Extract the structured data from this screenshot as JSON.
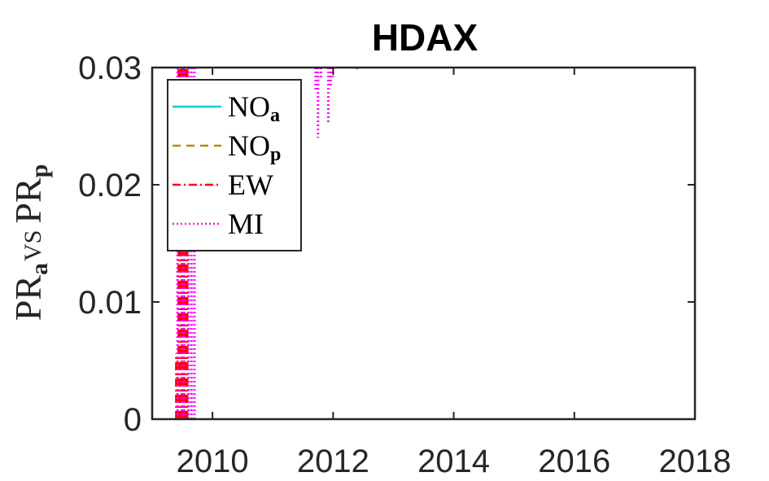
{
  "chart_data": {
    "type": "line",
    "title": "HDAX",
    "ylabel": {
      "main_a": "PR",
      "sub_a": "a",
      "middle": "VS",
      "main_b": "PR",
      "sub_b": "p"
    },
    "xlabel": "",
    "xlim": [
      2009.0,
      2018.0
    ],
    "ylim": [
      0,
      0.03
    ],
    "x_ticks": [
      "2010",
      "2012",
      "2014",
      "2016",
      "2018"
    ],
    "x_tick_values": [
      2010,
      2012,
      2014,
      2016,
      2018
    ],
    "y_ticks": [
      "0",
      "0.01",
      "0.02",
      "0.03"
    ],
    "y_tick_values": [
      0,
      0.01,
      0.02,
      0.03
    ],
    "grid": false,
    "legend_position": "top-left",
    "series": [
      {
        "name": "NO_a",
        "label_main": "NO",
        "label_sub": "a",
        "style": "solid",
        "color": "#00CFCF",
        "segments": []
      },
      {
        "name": "NO_p",
        "label_main": "NO",
        "label_sub": "p",
        "style": "dashed",
        "color": "#B8860B",
        "segments": []
      },
      {
        "name": "EW",
        "label_main": "EW",
        "label_sub": "",
        "style": "dashdot",
        "color": "#FF0000",
        "segments": [
          {
            "x": 2009.4,
            "y": [
              0.0,
              0.0056
            ]
          },
          {
            "x": 2009.44,
            "y": [
              0.0,
              0.03
            ]
          },
          {
            "x": 2009.47,
            "y": [
              0.0,
              0.03
            ]
          },
          {
            "x": 2009.5,
            "y": [
              0.0,
              0.03
            ]
          },
          {
            "x": 2009.54,
            "y": [
              0.0,
              0.03
            ]
          },
          {
            "x": 2009.58,
            "y": [
              0.0,
              0.03
            ]
          }
        ]
      },
      {
        "name": "MI",
        "label_main": "MI",
        "label_sub": "",
        "style": "dotted",
        "color": "#FF00FF",
        "segments": [
          {
            "x": 2009.42,
            "y": [
              0.0,
              0.03
            ]
          },
          {
            "x": 2009.49,
            "y": [
              0.0,
              0.03
            ]
          },
          {
            "x": 2009.53,
            "y": [
              0.0,
              0.03
            ]
          },
          {
            "x": 2009.6,
            "y": [
              0.0,
              0.03
            ]
          },
          {
            "x": 2009.65,
            "y": [
              0.0,
              0.03
            ]
          },
          {
            "x": 2009.7,
            "y": [
              0.0,
              0.03
            ]
          },
          {
            "x": 2011.71,
            "y": [
              0.03,
              0.028
            ]
          },
          {
            "x": 2011.75,
            "y": [
              0.03,
              0.024
            ]
          },
          {
            "x": 2011.8,
            "y": [
              0.03,
              0.029
            ]
          },
          {
            "x": 2011.92,
            "y": [
              0.03,
              0.0253
            ]
          },
          {
            "x": 2011.96,
            "y": [
              0.03,
              0.0284
            ]
          },
          {
            "x": 2012.0,
            "y": [
              0.03,
              0.0292
            ]
          },
          {
            "x": 2012.4,
            "y": [
              0.03,
              0.0298
            ]
          }
        ]
      }
    ]
  }
}
